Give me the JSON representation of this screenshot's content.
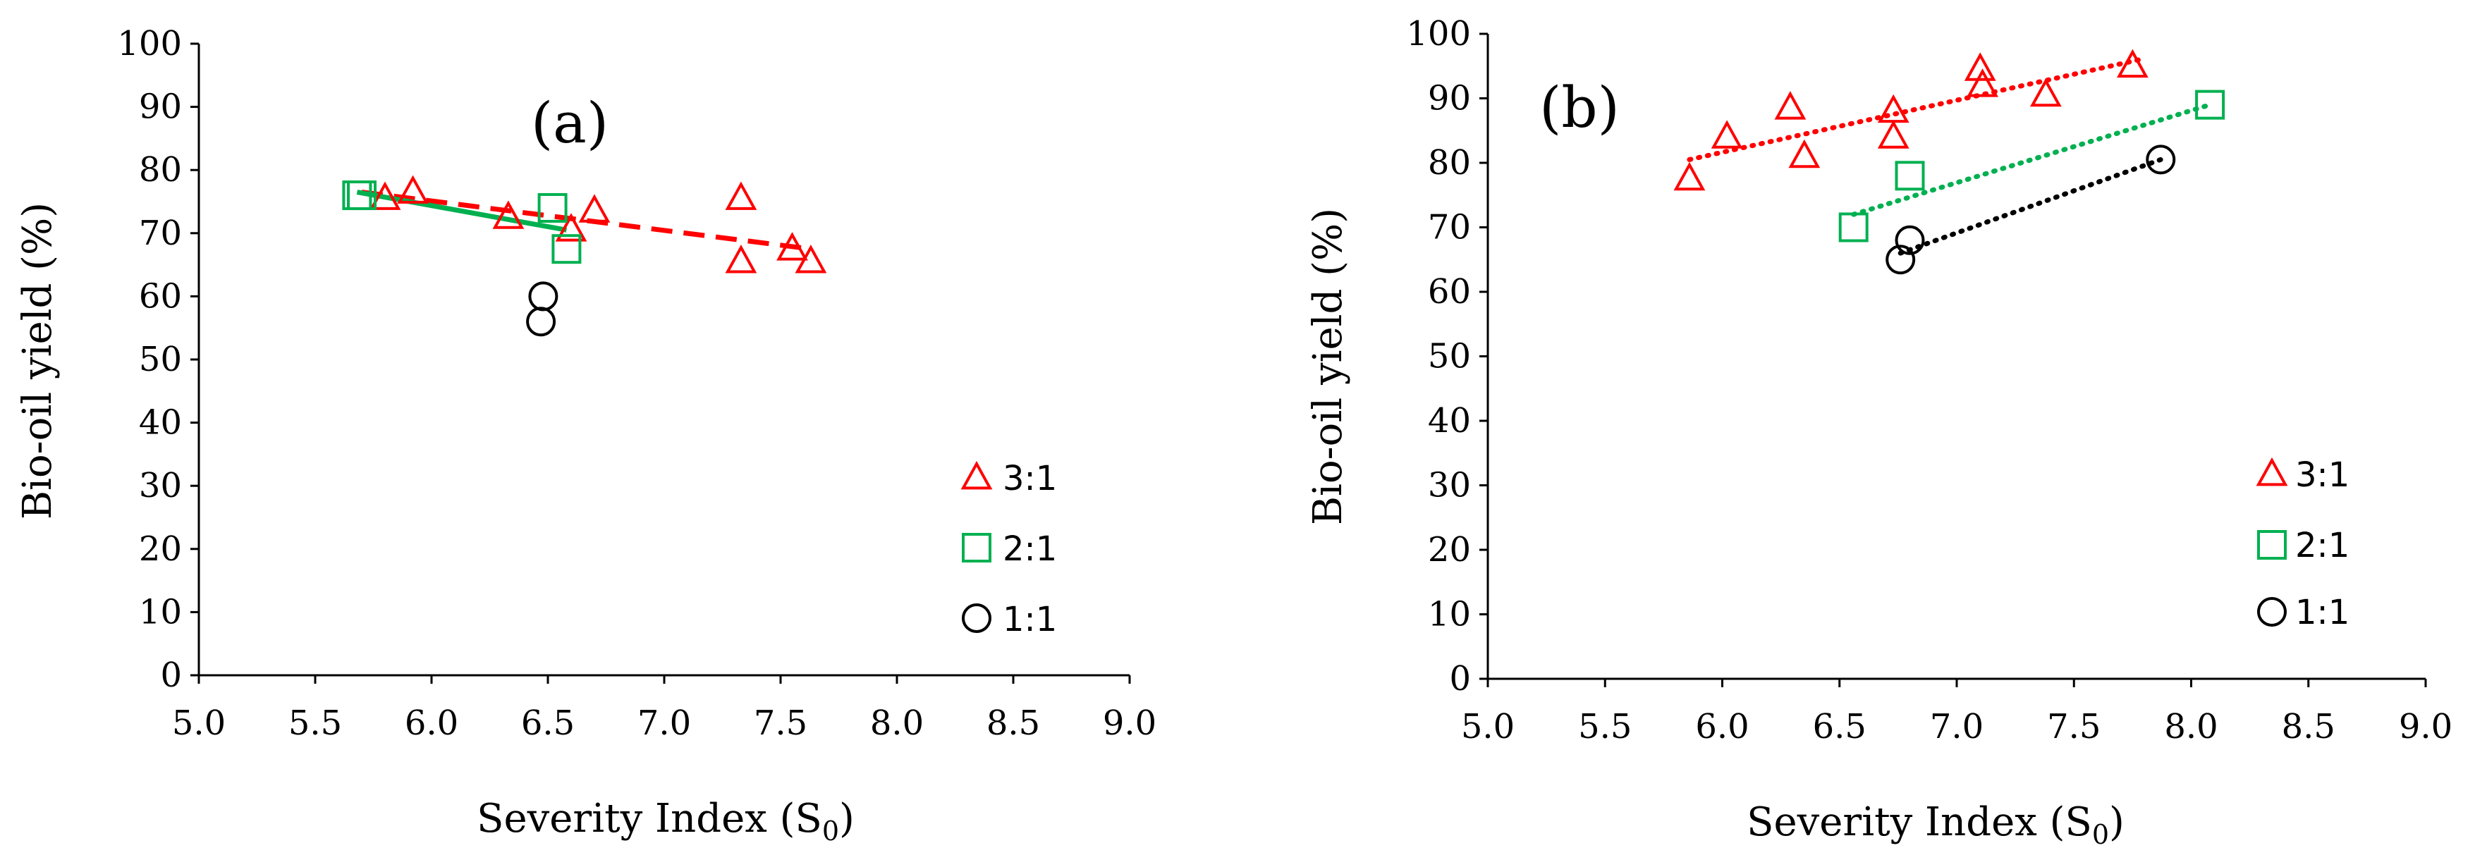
{
  "colors": {
    "s31": "#ff0000",
    "s21": "#00b050",
    "s11": "#000000"
  },
  "chart_data": [
    {
      "type": "scatter",
      "panel_label": "(a)",
      "xlabel": "Severity Index (S",
      "xlabel_sub": "0",
      "xlabel_close": ")",
      "ylabel": "Bio-oil yield (%)",
      "xlim": [
        5.0,
        9.0
      ],
      "ylim": [
        0,
        100
      ],
      "xticks": [
        "5.0",
        "5.5",
        "6.0",
        "6.5",
        "7.0",
        "7.5",
        "8.0",
        "8.5",
        "9.0"
      ],
      "yticks": [
        "0",
        "10",
        "20",
        "30",
        "40",
        "50",
        "60",
        "70",
        "80",
        "90",
        "100"
      ],
      "grid": false,
      "legend_position": "lower-right",
      "series": [
        {
          "name": "3:1",
          "marker": "triangle",
          "color": "#ff0000",
          "points": [
            [
              5.8,
              75.5
            ],
            [
              5.92,
              76.5
            ],
            [
              6.33,
              72.5
            ],
            [
              6.6,
              70.5
            ],
            [
              6.7,
              73.5
            ],
            [
              7.33,
              75.5
            ],
            [
              7.33,
              65.5
            ],
            [
              7.55,
              67.5
            ],
            [
              7.63,
              65.5
            ]
          ],
          "trend": {
            "style": "dashed",
            "from": [
              5.7,
              76.5
            ],
            "to": [
              7.63,
              67.5
            ]
          }
        },
        {
          "name": "2:1",
          "marker": "square",
          "color": "#00b050",
          "points": [
            [
              5.68,
              76.0
            ],
            [
              5.7,
              76.0
            ],
            [
              6.52,
              74.0
            ],
            [
              6.58,
              67.5
            ]
          ],
          "trend": {
            "style": "solid",
            "from": [
              5.68,
              76.5
            ],
            "to": [
              6.58,
              70.5
            ]
          }
        },
        {
          "name": "1:1",
          "marker": "circle",
          "color": "#000000",
          "points": [
            [
              6.48,
              60.0
            ],
            [
              6.47,
              56.0
            ]
          ]
        }
      ]
    },
    {
      "type": "scatter",
      "panel_label": "(b)",
      "xlabel": "Severity Index (S",
      "xlabel_sub": "0",
      "xlabel_close": ")",
      "ylabel": "Bio-oil yield (%)",
      "xlim": [
        5.0,
        9.0
      ],
      "ylim": [
        0,
        100
      ],
      "xticks": [
        "5.0",
        "5.5",
        "6.0",
        "6.5",
        "7.0",
        "7.5",
        "8.0",
        "8.5",
        "9.0"
      ],
      "yticks": [
        "0",
        "10",
        "20",
        "30",
        "40",
        "50",
        "60",
        "70",
        "80",
        "90",
        "100"
      ],
      "grid": false,
      "legend_position": "lower-right",
      "series": [
        {
          "name": "3:1",
          "marker": "triangle",
          "color": "#ff0000",
          "points": [
            [
              5.86,
              77.5
            ],
            [
              6.02,
              84.0
            ],
            [
              6.29,
              88.5
            ],
            [
              6.35,
              81.0
            ],
            [
              6.73,
              88.0
            ],
            [
              6.73,
              84.0
            ],
            [
              7.1,
              94.5
            ],
            [
              7.11,
              92.0
            ],
            [
              7.38,
              90.5
            ],
            [
              7.75,
              95.0
            ]
          ],
          "trend": {
            "style": "dotted",
            "from": [
              5.86,
              80.5
            ],
            "to": [
              7.78,
              96.0
            ]
          }
        },
        {
          "name": "2:1",
          "marker": "square",
          "color": "#00b050",
          "points": [
            [
              6.56,
              70.0
            ],
            [
              6.8,
              78.0
            ],
            [
              8.08,
              89.0
            ]
          ],
          "trend": {
            "style": "dotted",
            "from": [
              6.56,
              72.0
            ],
            "to": [
              8.08,
              89.0
            ]
          }
        },
        {
          "name": "1:1",
          "marker": "circle",
          "color": "#000000",
          "points": [
            [
              6.76,
              65.0
            ],
            [
              6.8,
              68.0
            ],
            [
              7.87,
              80.5
            ]
          ],
          "trend": {
            "style": "dotted",
            "from": [
              6.76,
              66.0
            ],
            "to": [
              7.87,
              80.5
            ]
          }
        }
      ]
    }
  ]
}
